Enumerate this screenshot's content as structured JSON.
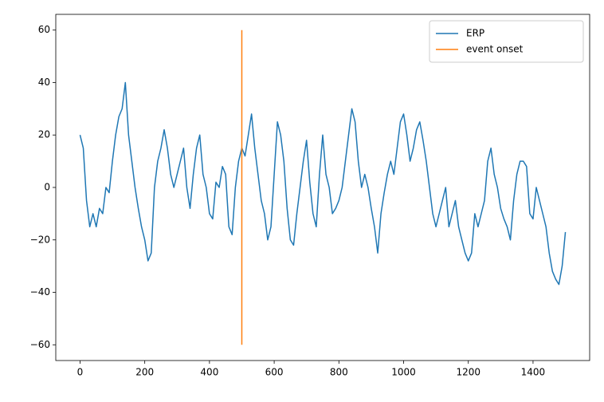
{
  "chart_data": {
    "type": "line",
    "xlim": [
      -75,
      1575
    ],
    "ylim": [
      -66,
      66
    ],
    "xticks": [
      0,
      200,
      400,
      600,
      800,
      1000,
      1200,
      1400
    ],
    "yticks": [
      {
        "value": -60,
        "label": "−60"
      },
      {
        "value": -40,
        "label": "−40"
      },
      {
        "value": -20,
        "label": "−20"
      },
      0,
      20,
      40,
      60
    ],
    "grid": false,
    "legend": "upper right",
    "series": [
      {
        "name": "ERP",
        "color": "#1f77b4",
        "x": [
          0,
          10,
          20,
          30,
          40,
          50,
          60,
          70,
          80,
          90,
          100,
          110,
          120,
          130,
          140,
          150,
          160,
          170,
          180,
          190,
          200,
          210,
          220,
          230,
          240,
          250,
          260,
          270,
          280,
          290,
          300,
          310,
          320,
          330,
          340,
          350,
          360,
          370,
          380,
          390,
          400,
          410,
          420,
          430,
          440,
          450,
          460,
          470,
          480,
          490,
          500,
          510,
          520,
          530,
          540,
          550,
          560,
          570,
          580,
          590,
          600,
          610,
          620,
          630,
          640,
          650,
          660,
          670,
          680,
          690,
          700,
          710,
          720,
          730,
          740,
          750,
          760,
          770,
          780,
          790,
          800,
          810,
          820,
          830,
          840,
          850,
          860,
          870,
          880,
          890,
          900,
          910,
          920,
          930,
          940,
          950,
          960,
          970,
          980,
          990,
          1000,
          1010,
          1020,
          1030,
          1040,
          1050,
          1060,
          1070,
          1080,
          1090,
          1100,
          1110,
          1120,
          1130,
          1140,
          1150,
          1160,
          1170,
          1180,
          1190,
          1200,
          1210,
          1220,
          1230,
          1240,
          1250,
          1260,
          1270,
          1280,
          1290,
          1300,
          1310,
          1320,
          1330,
          1340,
          1350,
          1360,
          1370,
          1380,
          1390,
          1400,
          1410,
          1420,
          1430,
          1440,
          1450,
          1460,
          1470,
          1480,
          1490,
          1500
        ],
        "values": [
          20,
          15,
          -5,
          -15,
          -10,
          -15,
          -8,
          -10,
          0,
          -2,
          10,
          20,
          27,
          30,
          40,
          20,
          10,
          0,
          -8,
          -15,
          -20,
          -28,
          -25,
          0,
          10,
          15,
          22,
          15,
          5,
          0,
          5,
          10,
          15,
          0,
          -8,
          5,
          15,
          20,
          5,
          0,
          -10,
          -12,
          2,
          0,
          8,
          5,
          -15,
          -18,
          0,
          10,
          15,
          12,
          20,
          28,
          15,
          5,
          -5,
          -10,
          -20,
          -15,
          5,
          25,
          20,
          10,
          -8,
          -20,
          -22,
          -10,
          0,
          10,
          18,
          2,
          -10,
          -15,
          5,
          20,
          5,
          0,
          -10,
          -8,
          -5,
          0,
          10,
          20,
          30,
          25,
          10,
          0,
          5,
          0,
          -8,
          -15,
          -25,
          -10,
          -2,
          5,
          10,
          5,
          15,
          25,
          28,
          20,
          10,
          15,
          22,
          25,
          18,
          10,
          0,
          -10,
          -15,
          -10,
          -5,
          0,
          -15,
          -10,
          -5,
          -15,
          -20,
          -25,
          -28,
          -25,
          -10,
          -15,
          -10,
          -5,
          10,
          15,
          5,
          0,
          -8,
          -12,
          -15,
          -20,
          -5,
          5,
          10,
          10,
          8,
          -10,
          -12,
          0,
          -5,
          -10,
          -15,
          -25,
          -32,
          -35,
          -37,
          -30,
          -17
        ]
      },
      {
        "name": "event onset",
        "color": "#ff7f0e",
        "x": [
          500,
          500
        ],
        "values": [
          -60,
          60
        ]
      }
    ]
  }
}
